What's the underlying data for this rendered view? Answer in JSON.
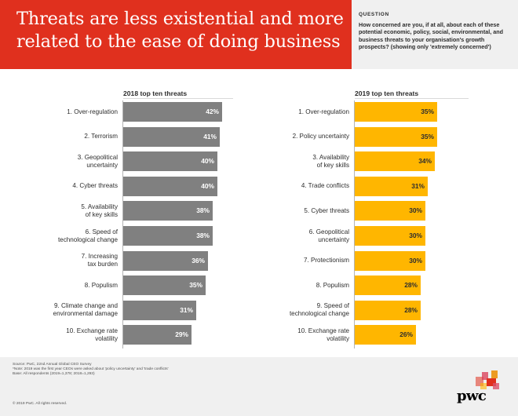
{
  "header": {
    "title": "Threats are less existential and more related to the ease of doing business",
    "question_label": "QUESTION",
    "question_text": "How concerned are you, if at all, about each of these potential economic, policy, social, environmental, and business threats to your organisation's growth prospects? (showing only 'extremely concerned')"
  },
  "chart_data": [
    {
      "type": "bar",
      "orientation": "horizontal",
      "title": "2018 top ten threats",
      "color": "#808080",
      "value_color": "#ffffff",
      "categories": [
        [
          "1. Over-regulation"
        ],
        [
          "2. Terrorism"
        ],
        [
          "3. Geopolitical",
          "uncertainty"
        ],
        [
          "4. Cyber threats"
        ],
        [
          "5. Availability",
          "of key skills"
        ],
        [
          "6. Speed of",
          "technological change"
        ],
        [
          "7. Increasing",
          "tax burden"
        ],
        [
          "8. Populism"
        ],
        [
          "9. Climate change and",
          "environmental damage"
        ],
        [
          "10. Exchange rate",
          "volatility"
        ]
      ],
      "values": [
        42,
        41,
        40,
        40,
        38,
        38,
        36,
        35,
        31,
        29
      ],
      "value_labels": [
        "42%",
        "41%",
        "40%",
        "40%",
        "38%",
        "38%",
        "36%",
        "35%",
        "31%",
        "29%"
      ],
      "unit": "%"
    },
    {
      "type": "bar",
      "orientation": "horizontal",
      "title": "2019 top ten threats",
      "color": "#ffb600",
      "value_color": "#2d2d2d",
      "categories": [
        [
          "1. Over-regulation"
        ],
        [
          "2. Policy uncertainty"
        ],
        [
          "3. Availability",
          "of key skills"
        ],
        [
          "4. Trade conflicts"
        ],
        [
          "5. Cyber threats"
        ],
        [
          "6. Geopolitical",
          "uncertainty"
        ],
        [
          "7. Protectionism"
        ],
        [
          "8. Populism"
        ],
        [
          "9. Speed of",
          "technological change"
        ],
        [
          "10. Exchange rate",
          "volatility"
        ]
      ],
      "values": [
        35,
        35,
        34,
        31,
        30,
        30,
        30,
        28,
        28,
        26
      ],
      "value_labels": [
        "35%",
        "35%",
        "34%",
        "31%",
        "30%",
        "30%",
        "30%",
        "28%",
        "28%",
        "26%"
      ],
      "unit": "%"
    }
  ],
  "footer": {
    "lines": [
      "Source: PwC, 22nd Annual Global CEO Survey",
      "*Note: 2019 was the first year CEOs were asked about 'policy uncertainty' and 'trade conflicts'",
      "Base: All respondents (2019=1,378; 2018=1,293)"
    ],
    "copyright": "© 2019 PwC. All rights reserved.",
    "logo": "pwc"
  },
  "colors": {
    "brand_red": "#e0301e",
    "bar_2018": "#808080",
    "bar_2019": "#ffb600"
  }
}
